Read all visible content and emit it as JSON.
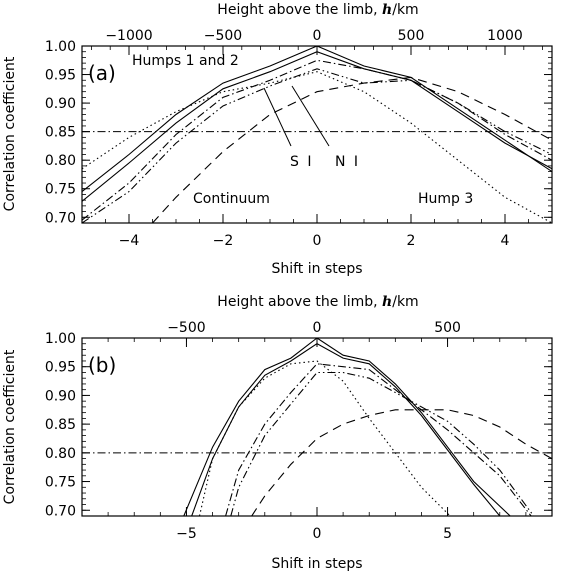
{
  "chart_data": [
    {
      "type": "line",
      "panel_label": "(a)",
      "xlabel": "Shift in steps",
      "ylabel": "Correlation coefficient",
      "top_axis_label_prefix": "Height above the limb, ",
      "top_axis_label_var": "h",
      "top_axis_label_unit": "/km",
      "top_ticks": [
        "−1000",
        "−500",
        "0",
        "500",
        "1000"
      ],
      "top_tick_x": [
        -4,
        -2,
        0,
        2,
        4
      ],
      "xlim": [
        -5,
        5
      ],
      "ylim": [
        0.69,
        1.0
      ],
      "xticks": [
        -4,
        -2,
        0,
        2,
        4
      ],
      "xtick_labels": [
        "−4",
        "−2",
        "0",
        "2",
        "4"
      ],
      "yticks": [
        0.7,
        0.75,
        0.8,
        0.85,
        0.9,
        0.95,
        1.0
      ],
      "ytick_labels": [
        "0.70",
        "0.75",
        "0.80",
        "0.85",
        "0.90",
        "0.95",
        "1.00"
      ],
      "threshold": 0.85,
      "annotations": {
        "humps": "Humps 1 and 2",
        "continuum": "Continuum",
        "hump3": "Hump 3",
        "si": "S I",
        "ni": "N I"
      },
      "series": [
        {
          "style": "solid",
          "x": [
            -5,
            -4,
            -3,
            -2,
            -1,
            0,
            1,
            2,
            3,
            4,
            5
          ],
          "y": [
            0.745,
            0.81,
            0.88,
            0.935,
            0.965,
            1.0,
            0.965,
            0.945,
            0.89,
            0.835,
            0.78
          ]
        },
        {
          "style": "solid",
          "x": [
            -5,
            -4,
            -3,
            -2,
            -1,
            0,
            1,
            2,
            3,
            4,
            5
          ],
          "y": [
            0.728,
            0.795,
            0.865,
            0.925,
            0.955,
            0.99,
            0.96,
            0.94,
            0.885,
            0.83,
            0.785
          ]
        },
        {
          "style": "dotted",
          "x": [
            -5,
            -4,
            -3,
            -2,
            -1,
            0,
            1,
            2,
            3,
            4,
            5
          ],
          "y": [
            0.785,
            0.84,
            0.885,
            0.92,
            0.935,
            0.955,
            0.92,
            0.865,
            0.8,
            0.735,
            0.69
          ]
        },
        {
          "style": "dashdot",
          "x": [
            -5,
            -4,
            -3,
            -2,
            -1,
            0,
            1,
            2,
            3,
            4,
            5
          ],
          "y": [
            0.695,
            0.76,
            0.845,
            0.91,
            0.94,
            0.975,
            0.96,
            0.94,
            0.9,
            0.845,
            0.8
          ]
        },
        {
          "style": "dashdotdot",
          "x": [
            -5,
            -4,
            -3,
            -2,
            -1,
            0,
            1,
            2,
            3,
            4,
            5
          ],
          "y": [
            0.69,
            0.745,
            0.83,
            0.895,
            0.93,
            0.96,
            0.935,
            0.94,
            0.9,
            0.85,
            0.81
          ]
        },
        {
          "style": "dashed",
          "x": [
            -3.5,
            -3,
            -2,
            -1,
            0,
            1,
            2,
            3,
            4,
            5
          ],
          "y": [
            0.69,
            0.735,
            0.815,
            0.88,
            0.92,
            0.935,
            0.945,
            0.92,
            0.88,
            0.835
          ]
        }
      ]
    },
    {
      "type": "line",
      "panel_label": "(b)",
      "xlabel": "Shift in steps",
      "ylabel": "Correlation coefficient",
      "top_axis_label_prefix": "Height above the limb, ",
      "top_axis_label_var": "h",
      "top_axis_label_unit": "/km",
      "top_ticks": [
        "−500",
        "0",
        "500"
      ],
      "top_tick_x": [
        -5,
        0,
        5
      ],
      "xlim": [
        -9,
        9
      ],
      "ylim": [
        0.69,
        1.0
      ],
      "xticks": [
        -5,
        0,
        5
      ],
      "xtick_labels": [
        "−5",
        "0",
        "5"
      ],
      "yticks": [
        0.7,
        0.75,
        0.8,
        0.85,
        0.9,
        0.95,
        1.0
      ],
      "ytick_labels": [
        "0.70",
        "0.75",
        "0.80",
        "0.85",
        "0.90",
        "0.95",
        "1.00"
      ],
      "threshold": 0.8,
      "series": [
        {
          "style": "solid",
          "x": [
            -5.1,
            -4,
            -3,
            -2,
            -1,
            0,
            1,
            2,
            3,
            4,
            5,
            6,
            7.4
          ],
          "y": [
            0.69,
            0.81,
            0.89,
            0.945,
            0.965,
            1.0,
            0.97,
            0.96,
            0.92,
            0.87,
            0.81,
            0.75,
            0.69
          ]
        },
        {
          "style": "solid",
          "x": [
            -4.8,
            -4,
            -3,
            -2,
            -1,
            0,
            1,
            2,
            3,
            4,
            5,
            6,
            7.0
          ],
          "y": [
            0.69,
            0.79,
            0.88,
            0.935,
            0.96,
            0.99,
            0.965,
            0.955,
            0.915,
            0.865,
            0.805,
            0.745,
            0.69
          ]
        },
        {
          "style": "dotted",
          "x": [
            -4.5,
            -4,
            -3,
            -2,
            -1,
            0,
            1,
            2,
            3,
            4,
            5.1
          ],
          "y": [
            0.69,
            0.79,
            0.88,
            0.93,
            0.955,
            0.96,
            0.925,
            0.86,
            0.8,
            0.74,
            0.69
          ]
        },
        {
          "style": "dashdot",
          "x": [
            -3.5,
            -3,
            -2,
            -1,
            0,
            1,
            2,
            3,
            4,
            5,
            6,
            7,
            8.2
          ],
          "y": [
            0.69,
            0.77,
            0.85,
            0.905,
            0.955,
            0.95,
            0.945,
            0.91,
            0.875,
            0.84,
            0.8,
            0.76,
            0.69
          ]
        },
        {
          "style": "dashdotdot",
          "x": [
            -3.3,
            -3,
            -2,
            -1,
            0,
            1,
            2,
            3,
            4,
            5,
            6,
            7,
            8.3
          ],
          "y": [
            0.69,
            0.74,
            0.83,
            0.885,
            0.94,
            0.94,
            0.93,
            0.905,
            0.88,
            0.855,
            0.815,
            0.77,
            0.69
          ]
        },
        {
          "style": "dashed",
          "x": [
            -2.5,
            -2,
            -1,
            0,
            1,
            2,
            3,
            4,
            5,
            6,
            7,
            8,
            9
          ],
          "y": [
            0.69,
            0.725,
            0.78,
            0.825,
            0.85,
            0.865,
            0.875,
            0.875,
            0.875,
            0.865,
            0.845,
            0.815,
            0.79
          ]
        }
      ]
    }
  ]
}
